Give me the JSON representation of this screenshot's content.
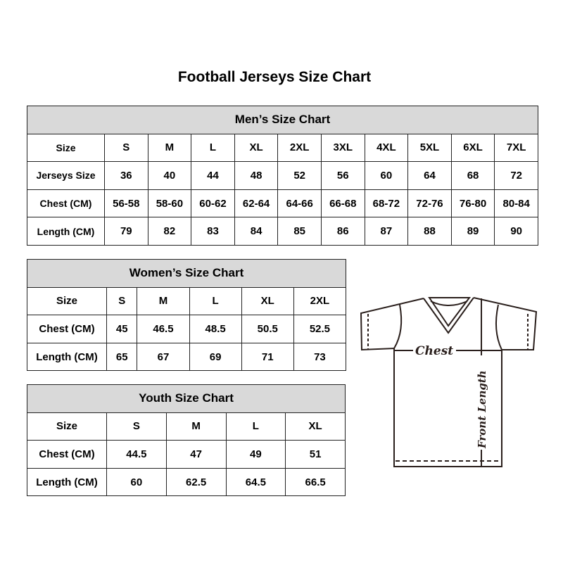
{
  "title": "Football Jerseys Size Chart",
  "men": {
    "heading": "Men’s Size Chart",
    "rows": [
      {
        "label": "Size",
        "values": [
          "S",
          "M",
          "L",
          "XL",
          "2XL",
          "3XL",
          "4XL",
          "5XL",
          "6XL",
          "7XL"
        ]
      },
      {
        "label": "Jerseys Size",
        "values": [
          "36",
          "40",
          "44",
          "48",
          "52",
          "56",
          "60",
          "64",
          "68",
          "72"
        ]
      },
      {
        "label": "Chest (CM)",
        "values": [
          "56-58",
          "58-60",
          "60-62",
          "62-64",
          "64-66",
          "66-68",
          "68-72",
          "72-76",
          "76-80",
          "80-84"
        ]
      },
      {
        "label": "Length (CM)",
        "values": [
          "79",
          "82",
          "83",
          "84",
          "85",
          "86",
          "87",
          "88",
          "89",
          "90"
        ]
      }
    ]
  },
  "women": {
    "heading": "Women’s Size Chart",
    "rows": [
      {
        "label": "Size",
        "values": [
          "S",
          "M",
          "L",
          "XL",
          "2XL"
        ]
      },
      {
        "label": "Chest (CM)",
        "values": [
          "45",
          "46.5",
          "48.5",
          "50.5",
          "52.5"
        ]
      },
      {
        "label": "Length (CM)",
        "values": [
          "65",
          "67",
          "69",
          "71",
          "73"
        ]
      }
    ]
  },
  "youth": {
    "heading": "Youth Size Chart",
    "rows": [
      {
        "label": "Size",
        "values": [
          "S",
          "M",
          "L",
          "XL"
        ]
      },
      {
        "label": "Chest (CM)",
        "values": [
          "44.5",
          "47",
          "49",
          "51"
        ]
      },
      {
        "label": "Length (CM)",
        "values": [
          "60",
          "62.5",
          "64.5",
          "66.5"
        ]
      }
    ]
  },
  "diagram": {
    "chest_label": "Chest",
    "length_label": "Front Length"
  }
}
